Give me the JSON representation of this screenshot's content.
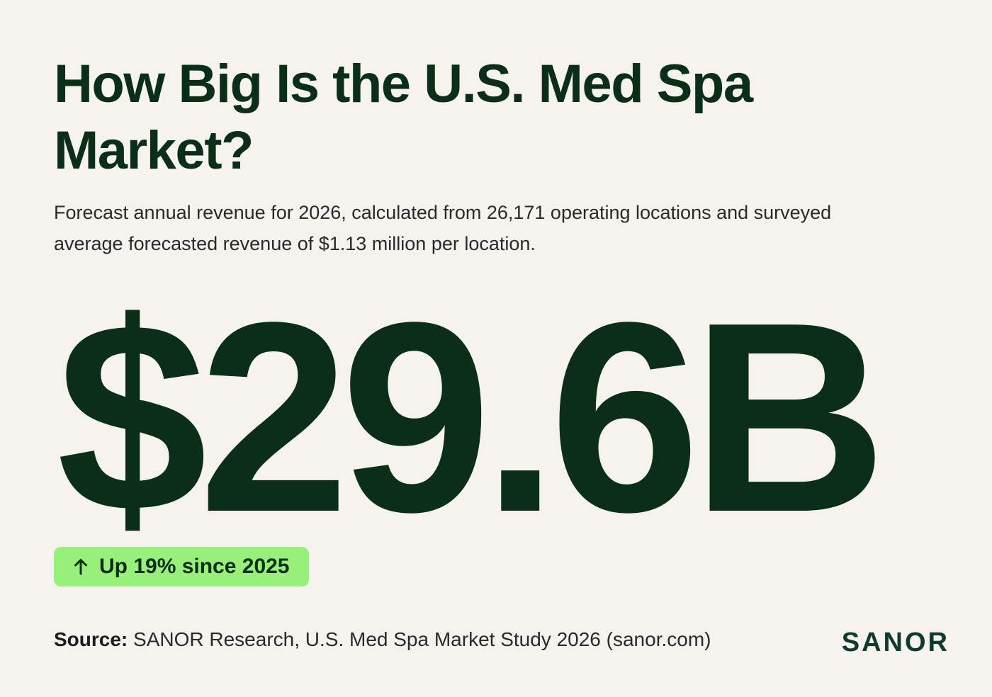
{
  "header": {
    "title": "How Big Is the U.S. Med Spa Market?",
    "subtitle": "Forecast annual revenue for 2026, calculated from 26,171 operating locations and surveyed average forecasted revenue of $1.13 million per location."
  },
  "stat": {
    "value": "$29.6B"
  },
  "badge": {
    "icon": "arrow-up-icon",
    "text": "Up 19% since 2025",
    "color": "#98f07a"
  },
  "footer": {
    "source_label": "Source:",
    "source_text": "SANOR Research, U.S. Med Spa Market Study 2026 (sanor.com)",
    "logo": "SANOR"
  },
  "colors": {
    "background": "#f6f3ee",
    "primary": "#0b2e18",
    "logo": "#0f3b2e"
  }
}
